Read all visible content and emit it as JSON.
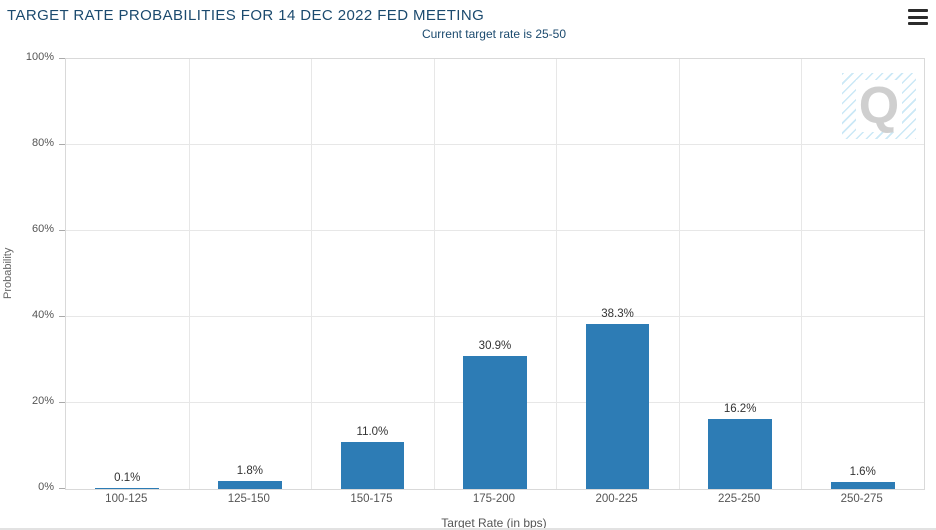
{
  "header": {
    "title": "TARGET RATE PROBABILITIES FOR 14 DEC 2022 FED MEETING"
  },
  "chart_data": {
    "type": "bar",
    "title": "TARGET RATE PROBABILITIES FOR 14 DEC 2022 FED MEETING",
    "subtitle": "Current target rate is 25-50",
    "xlabel": "Target Rate (in bps)",
    "ylabel": "Probability",
    "categories": [
      "100-125",
      "125-150",
      "150-175",
      "175-200",
      "200-225",
      "225-250",
      "250-275"
    ],
    "values": [
      0.1,
      1.8,
      11.0,
      30.9,
      38.3,
      16.2,
      1.6
    ],
    "value_labels": [
      "0.1%",
      "1.8%",
      "11.0%",
      "30.9%",
      "38.3%",
      "16.2%",
      "1.6%"
    ],
    "yticks": [
      0,
      20,
      40,
      60,
      80,
      100
    ],
    "ytick_labels": [
      "0%",
      "20%",
      "40%",
      "60%",
      "80%",
      "100%"
    ],
    "ylim": [
      0,
      100
    ],
    "grid": true,
    "legend": "none",
    "bar_color": "#2d7cb5",
    "title_color": "#1b4a6e",
    "watermark": "Q"
  },
  "icons": {
    "menu": "hamburger-menu-icon",
    "watermark": "q-logo-watermark"
  }
}
